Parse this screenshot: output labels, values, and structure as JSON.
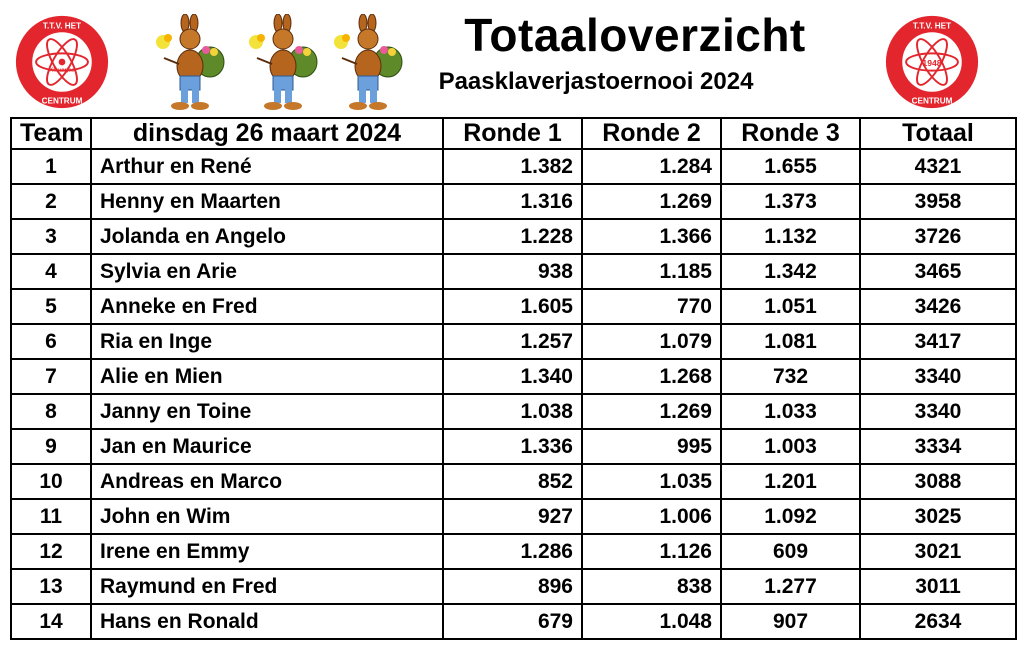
{
  "header": {
    "title": "Totaaloverzicht",
    "subtitle": "Paasklaverjastoernooi 2024"
  },
  "logo_left": {
    "text_top": "T.T.V. HET",
    "text_mid": "Klaverjas",
    "text_bottom": "CENTRUM",
    "color": "#e3262d"
  },
  "logo_right": {
    "text_top": "T.T.V. HET",
    "text_mid": "1948",
    "text_bottom": "CENTRUM",
    "color": "#e3262d"
  },
  "decorations": {
    "icon": "easter-bunny-icon",
    "count": 3
  },
  "table": {
    "headers": {
      "team": "Team",
      "date": "dinsdag 26 maart 2024",
      "r1": "Ronde 1",
      "r2": "Ronde 2",
      "r3": "Ronde 3",
      "total": "Totaal"
    },
    "rows": [
      {
        "team": "1",
        "name": "Arthur en René",
        "r1": "1.382",
        "r2": "1.284",
        "r3": "1.655",
        "total": "4321"
      },
      {
        "team": "2",
        "name": "Henny en Maarten",
        "r1": "1.316",
        "r2": "1.269",
        "r3": "1.373",
        "total": "3958"
      },
      {
        "team": "3",
        "name": "Jolanda en Angelo",
        "r1": "1.228",
        "r2": "1.366",
        "r3": "1.132",
        "total": "3726"
      },
      {
        "team": "4",
        "name": "Sylvia en Arie",
        "r1": "938",
        "r2": "1.185",
        "r3": "1.342",
        "total": "3465"
      },
      {
        "team": "5",
        "name": "Anneke en Fred",
        "r1": "1.605",
        "r2": "770",
        "r3": "1.051",
        "total": "3426"
      },
      {
        "team": "6",
        "name": "Ria en Inge",
        "r1": "1.257",
        "r2": "1.079",
        "r3": "1.081",
        "total": "3417"
      },
      {
        "team": "7",
        "name": "Alie en Mien",
        "r1": "1.340",
        "r2": "1.268",
        "r3": "732",
        "total": "3340"
      },
      {
        "team": "8",
        "name": "Janny en Toine",
        "r1": "1.038",
        "r2": "1.269",
        "r3": "1.033",
        "total": "3340"
      },
      {
        "team": "9",
        "name": "Jan en Maurice",
        "r1": "1.336",
        "r2": "995",
        "r3": "1.003",
        "total": "3334"
      },
      {
        "team": "10",
        "name": "Andreas en Marco",
        "r1": "852",
        "r2": "1.035",
        "r3": "1.201",
        "total": "3088"
      },
      {
        "team": "11",
        "name": "John en Wim",
        "r1": "927",
        "r2": "1.006",
        "r3": "1.092",
        "total": "3025"
      },
      {
        "team": "12",
        "name": "Irene en Emmy",
        "r1": "1.286",
        "r2": "1.126",
        "r3": "609",
        "total": "3021"
      },
      {
        "team": "13",
        "name": "Raymund en Fred",
        "r1": "896",
        "r2": "838",
        "r3": "1.277",
        "total": "3011"
      },
      {
        "team": "14",
        "name": "Hans en Ronald",
        "r1": "679",
        "r2": "1.048",
        "r3": "907",
        "total": "2634"
      }
    ]
  }
}
